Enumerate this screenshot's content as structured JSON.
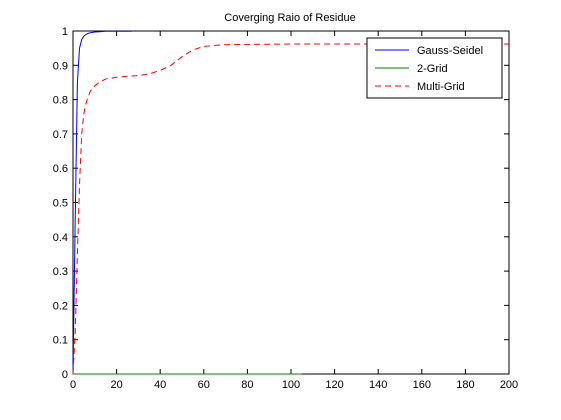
{
  "chart_data": {
    "type": "line",
    "title": "Coverging Raio of Residue",
    "xlabel": "",
    "ylabel": "",
    "xlim": [
      0,
      200
    ],
    "ylim": [
      0,
      1
    ],
    "xticks": [
      0,
      20,
      40,
      60,
      80,
      100,
      120,
      140,
      160,
      180,
      200
    ],
    "yticks": [
      0,
      0.1,
      0.2,
      0.3,
      0.4,
      0.5,
      0.6,
      0.7,
      0.8,
      0.9,
      1
    ],
    "grid": false,
    "legend_position": "top-right",
    "series": [
      {
        "name": "Gauss-Seidel",
        "color": "#0000ff",
        "style": "solid",
        "x": [
          0,
          1,
          2,
          3,
          4,
          5,
          6,
          7,
          8,
          10,
          12,
          15,
          20,
          25,
          27
        ],
        "y": [
          0,
          0.45,
          0.85,
          0.95,
          0.975,
          0.985,
          0.99,
          0.993,
          0.995,
          0.997,
          0.998,
          0.999,
          0.999,
          0.999,
          0.999
        ]
      },
      {
        "name": "2-Grid",
        "color": "#008000",
        "style": "solid",
        "x": [
          0,
          105
        ],
        "y": [
          0,
          0
        ]
      },
      {
        "name": "Multi-Grid",
        "color": "#ff0000",
        "style": "dashed",
        "x": [
          0,
          1,
          2,
          3,
          4,
          5,
          6,
          7,
          8,
          10,
          12,
          15,
          20,
          25,
          30,
          35,
          40,
          45,
          50,
          55,
          60,
          65,
          70,
          80,
          100,
          120,
          150,
          180,
          200
        ],
        "y": [
          0,
          0.12,
          0.35,
          0.55,
          0.7,
          0.76,
          0.79,
          0.81,
          0.825,
          0.84,
          0.85,
          0.86,
          0.865,
          0.868,
          0.87,
          0.875,
          0.885,
          0.9,
          0.925,
          0.945,
          0.955,
          0.958,
          0.96,
          0.961,
          0.962,
          0.962,
          0.962,
          0.962,
          0.962
        ]
      }
    ]
  }
}
